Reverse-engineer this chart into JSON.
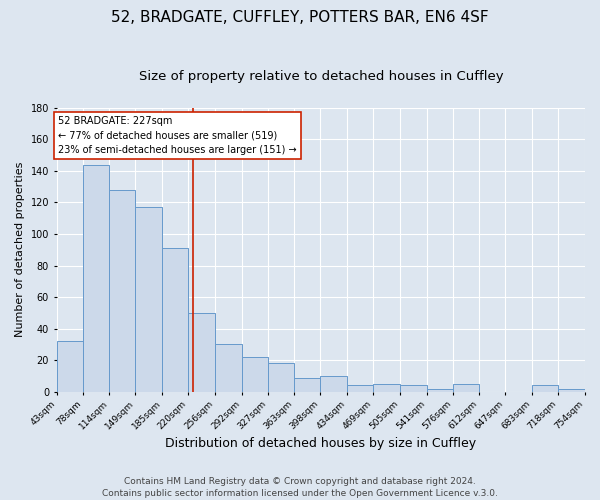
{
  "title1": "52, BRADGATE, CUFFLEY, POTTERS BAR, EN6 4SF",
  "title2": "Size of property relative to detached houses in Cuffley",
  "xlabel": "Distribution of detached houses by size in Cuffley",
  "ylabel": "Number of detached properties",
  "bin_edges": [
    43,
    78,
    114,
    149,
    185,
    220,
    256,
    292,
    327,
    363,
    398,
    434,
    469,
    505,
    541,
    576,
    612,
    647,
    683,
    718,
    754
  ],
  "bar_heights": [
    32,
    144,
    128,
    117,
    91,
    50,
    30,
    22,
    18,
    9,
    10,
    4,
    5,
    4,
    2,
    5,
    0,
    0,
    4,
    2
  ],
  "x_tick_labels": [
    "43sqm",
    "78sqm",
    "114sqm",
    "149sqm",
    "185sqm",
    "220sqm",
    "256sqm",
    "292sqm",
    "327sqm",
    "363sqm",
    "398sqm",
    "434sqm",
    "469sqm",
    "505sqm",
    "541sqm",
    "576sqm",
    "612sqm",
    "647sqm",
    "683sqm",
    "718sqm",
    "754sqm"
  ],
  "bar_color": "#ccd9ea",
  "bar_edge_color": "#6699cc",
  "vline_x": 227,
  "vline_color": "#cc2200",
  "ylim": [
    0,
    180
  ],
  "yticks": [
    0,
    20,
    40,
    60,
    80,
    100,
    120,
    140,
    160,
    180
  ],
  "annotation_title": "52 BRADGATE: 227sqm",
  "annotation_line1": "← 77% of detached houses are smaller (519)",
  "annotation_line2": "23% of semi-detached houses are larger (151) →",
  "annotation_box_facecolor": "#ffffff",
  "annotation_box_edgecolor": "#cc2200",
  "footer1": "Contains HM Land Registry data © Crown copyright and database right 2024.",
  "footer2": "Contains public sector information licensed under the Open Government Licence v.3.0.",
  "bg_color": "#dde6f0",
  "plot_bg_color": "#dde6f0",
  "grid_color": "#ffffff",
  "title1_fontsize": 11,
  "title2_fontsize": 9.5,
  "tick_fontsize": 6.5,
  "xlabel_fontsize": 9,
  "ylabel_fontsize": 8,
  "footer_fontsize": 6.5
}
